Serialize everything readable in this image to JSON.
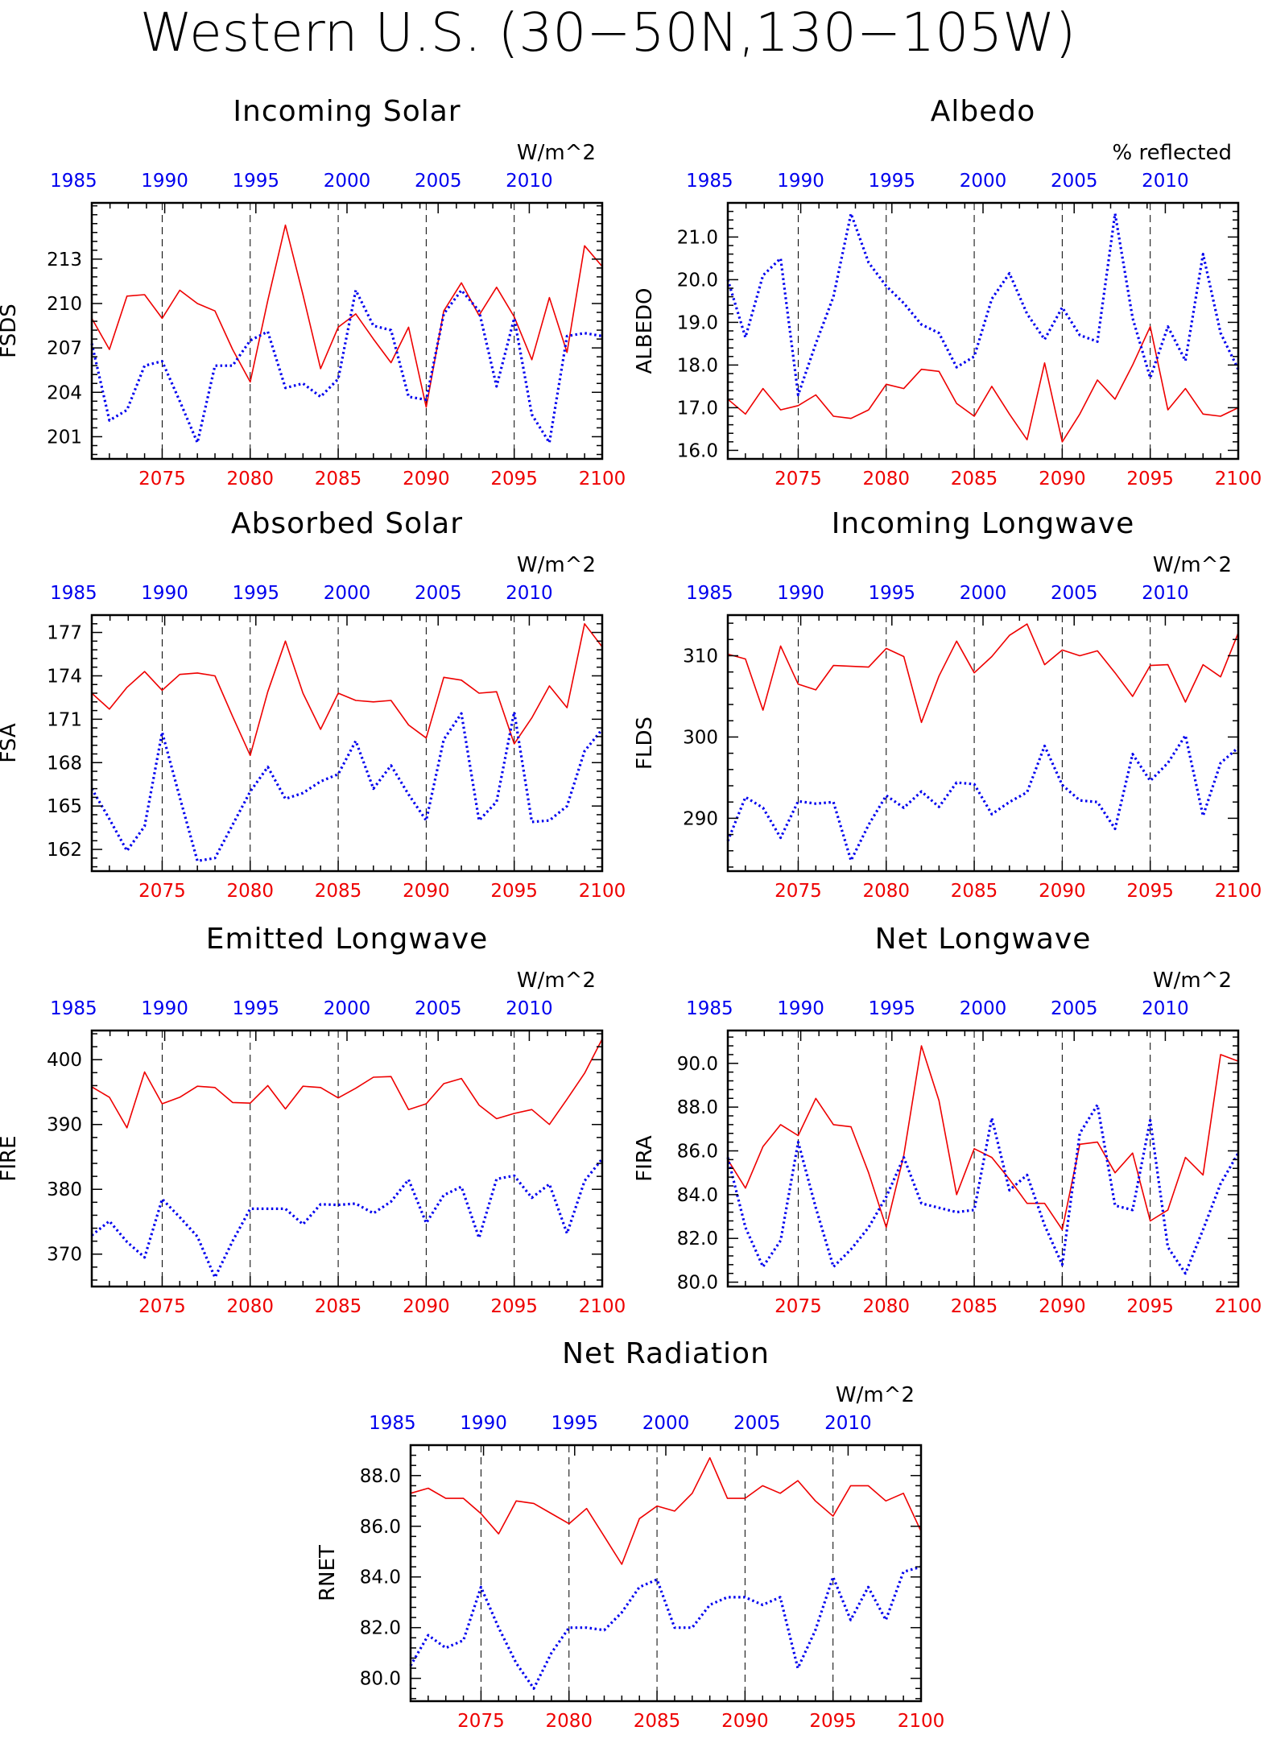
{
  "title": "Western U.S. (30−50N,130−105W)",
  "colors": {
    "red_series": "#ee0000",
    "blue_series": "#0000ee",
    "red_axis": "#ee0000",
    "blue_axis": "#0000ee",
    "frame": "#000000"
  },
  "chart_data": [
    {
      "type": "line",
      "title": "Incoming Solar",
      "units": "W/m^2",
      "ylabel": "FSDS",
      "ylim": [
        199.5,
        216.8
      ],
      "yticks": [
        201,
        204,
        207,
        210,
        213
      ],
      "ytick_labels": [
        "201",
        "204",
        "207",
        "210",
        "213"
      ],
      "x_bottom": {
        "range": [
          2071,
          2100
        ],
        "ticks": [
          2075,
          2080,
          2085,
          2090,
          2095,
          2100
        ]
      },
      "x_top": {
        "range": [
          1986,
          2014
        ],
        "ticks": [
          1985,
          1990,
          1995,
          2000,
          2005,
          2010
        ]
      },
      "vlines": [
        2075,
        2080,
        2085,
        2090,
        2095
      ],
      "series": [
        {
          "color": "red",
          "style": "solid",
          "values": [
            209.0,
            206.9,
            210.5,
            210.6,
            209.0,
            210.9,
            210.0,
            209.5,
            206.9,
            204.7,
            210.2,
            215.3,
            210.6,
            205.6,
            208.4,
            209.3,
            207.6,
            206.0,
            208.4,
            203.0,
            209.5,
            211.4,
            209.2,
            211.1,
            209.1,
            206.2,
            210.4,
            206.7,
            213.9,
            212.5
          ]
        },
        {
          "color": "blue",
          "style": "dotted",
          "values": [
            207.3,
            202.1,
            202.8,
            205.8,
            206.1,
            203.4,
            200.6,
            205.8,
            205.8,
            207.5,
            208.1,
            204.3,
            204.6,
            203.7,
            204.9,
            210.9,
            208.5,
            208.2,
            203.7,
            203.5,
            209.3,
            210.9,
            209.5,
            204.4,
            209.0,
            202.5,
            200.6,
            207.8,
            208.0,
            207.8
          ]
        }
      ]
    },
    {
      "type": "line",
      "title": "Albedo",
      "units": "% reflected",
      "ylabel": "ALBEDO",
      "ylim": [
        15.8,
        21.8
      ],
      "yticks": [
        16.0,
        17.0,
        18.0,
        19.0,
        20.0,
        21.0
      ],
      "ytick_labels": [
        "16.0",
        "17.0",
        "18.0",
        "19.0",
        "20.0",
        "21.0"
      ],
      "x_bottom": {
        "range": [
          2071,
          2100
        ],
        "ticks": [
          2075,
          2080,
          2085,
          2090,
          2095,
          2100
        ]
      },
      "x_top": {
        "range": [
          1986,
          2014
        ],
        "ticks": [
          1985,
          1990,
          1995,
          2000,
          2005,
          2010
        ]
      },
      "vlines": [
        2075,
        2080,
        2085,
        2090,
        2095
      ],
      "series": [
        {
          "color": "red",
          "style": "solid",
          "values": [
            17.2,
            16.85,
            17.45,
            16.95,
            17.05,
            17.3,
            16.8,
            16.75,
            16.95,
            17.55,
            17.45,
            17.9,
            17.85,
            17.1,
            16.8,
            17.5,
            16.85,
            16.25,
            18.05,
            16.2,
            16.85,
            17.65,
            17.2,
            18.0,
            18.9,
            16.95,
            17.45,
            16.85,
            16.8,
            17.0
          ]
        },
        {
          "color": "blue",
          "style": "dotted",
          "values": [
            20.0,
            18.65,
            20.1,
            20.5,
            17.3,
            18.5,
            19.6,
            21.55,
            20.4,
            19.85,
            19.45,
            18.95,
            18.75,
            17.95,
            18.2,
            19.55,
            20.15,
            19.2,
            18.6,
            19.35,
            18.7,
            18.55,
            21.55,
            19.1,
            17.7,
            18.9,
            18.1,
            20.6,
            18.75,
            17.9
          ]
        }
      ]
    },
    {
      "type": "line",
      "title": "Absorbed Solar",
      "units": "W/m^2",
      "ylabel": "FSA",
      "ylim": [
        160.5,
        178.2
      ],
      "yticks": [
        162,
        165,
        168,
        171,
        174,
        177
      ],
      "ytick_labels": [
        "162",
        "165",
        "168",
        "171",
        "174",
        "177"
      ],
      "x_bottom": {
        "range": [
          2071,
          2100
        ],
        "ticks": [
          2075,
          2080,
          2085,
          2090,
          2095,
          2100
        ]
      },
      "x_top": {
        "range": [
          1986,
          2014
        ],
        "ticks": [
          1985,
          1990,
          1995,
          2000,
          2005,
          2010
        ]
      },
      "vlines": [
        2075,
        2080,
        2085,
        2090,
        2095
      ],
      "series": [
        {
          "color": "red",
          "style": "solid",
          "values": [
            172.8,
            171.7,
            173.2,
            174.3,
            173.0,
            174.1,
            174.2,
            174.0,
            171.2,
            168.5,
            172.9,
            176.4,
            172.8,
            170.3,
            172.8,
            172.3,
            172.2,
            172.3,
            170.6,
            169.7,
            173.9,
            173.7,
            172.8,
            172.9,
            169.3,
            171.1,
            173.3,
            171.8,
            177.6,
            176.0
          ]
        },
        {
          "color": "blue",
          "style": "dotted",
          "values": [
            166.2,
            164.1,
            161.9,
            163.6,
            170.1,
            165.6,
            161.2,
            161.4,
            163.7,
            166.0,
            167.7,
            165.5,
            165.9,
            166.7,
            167.2,
            169.5,
            166.2,
            167.8,
            165.8,
            164.0,
            169.6,
            171.4,
            164.0,
            165.3,
            171.5,
            163.9,
            164.0,
            165.0,
            168.8,
            170.3
          ]
        }
      ]
    },
    {
      "type": "line",
      "title": "Incoming Longwave",
      "units": "W/m^2",
      "ylabel": "FLDS",
      "ylim": [
        283.5,
        315.0
      ],
      "yticks": [
        290,
        300,
        310
      ],
      "ytick_labels": [
        "290",
        "300",
        "310"
      ],
      "x_bottom": {
        "range": [
          2071,
          2100
        ],
        "ticks": [
          2075,
          2080,
          2085,
          2090,
          2095,
          2100
        ]
      },
      "x_top": {
        "range": [
          1986,
          2014
        ],
        "ticks": [
          1985,
          1990,
          1995,
          2000,
          2005,
          2010
        ]
      },
      "vlines": [
        2075,
        2080,
        2085,
        2090,
        2095
      ],
      "series": [
        {
          "color": "red",
          "style": "solid",
          "values": [
            310.2,
            309.6,
            303.3,
            311.2,
            306.5,
            305.8,
            308.8,
            308.7,
            308.6,
            310.9,
            309.9,
            301.8,
            307.5,
            311.8,
            307.9,
            309.9,
            312.5,
            313.9,
            308.9,
            310.7,
            310.0,
            310.6,
            307.9,
            305.0,
            308.8,
            308.9,
            304.3,
            308.9,
            307.4,
            312.8
          ]
        },
        {
          "color": "blue",
          "style": "dotted",
          "values": [
            287.2,
            292.6,
            291.3,
            287.6,
            292.1,
            291.8,
            292.0,
            284.8,
            289.2,
            292.8,
            291.3,
            293.3,
            291.4,
            294.4,
            294.2,
            290.5,
            292.0,
            293.2,
            298.9,
            294.1,
            292.2,
            292.0,
            288.7,
            297.9,
            294.6,
            296.8,
            300.2,
            290.3,
            296.8,
            298.7
          ]
        }
      ]
    },
    {
      "type": "line",
      "title": "Emitted Longwave",
      "units": "W/m^2",
      "ylabel": "FIRE",
      "ylim": [
        365.0,
        404.5
      ],
      "yticks": [
        370,
        380,
        390,
        400
      ],
      "ytick_labels": [
        "370",
        "380",
        "390",
        "400"
      ],
      "x_bottom": {
        "range": [
          2071,
          2100
        ],
        "ticks": [
          2075,
          2080,
          2085,
          2090,
          2095,
          2100
        ]
      },
      "x_top": {
        "range": [
          1986,
          2014
        ],
        "ticks": [
          1985,
          1990,
          1995,
          2000,
          2005,
          2010
        ]
      },
      "vlines": [
        2075,
        2080,
        2085,
        2090,
        2095
      ],
      "series": [
        {
          "color": "red",
          "style": "solid",
          "values": [
            395.8,
            394.2,
            389.5,
            398.1,
            393.2,
            394.2,
            395.9,
            395.7,
            393.4,
            393.3,
            396.0,
            392.4,
            395.9,
            395.7,
            394.1,
            395.6,
            397.3,
            397.4,
            392.3,
            393.2,
            396.3,
            397.1,
            393.0,
            390.9,
            391.7,
            392.3,
            390.0,
            393.9,
            397.9,
            403.2
          ]
        },
        {
          "color": "blue",
          "style": "dotted",
          "values": [
            372.9,
            375.1,
            371.9,
            369.5,
            378.5,
            375.7,
            372.7,
            366.4,
            372.0,
            377.0,
            377.0,
            377.0,
            374.6,
            377.7,
            377.6,
            377.8,
            376.3,
            378.1,
            381.5,
            374.8,
            379.1,
            380.4,
            372.5,
            381.6,
            382.1,
            378.7,
            380.8,
            373.2,
            381.3,
            384.7
          ]
        }
      ]
    },
    {
      "type": "line",
      "title": "Net Longwave",
      "units": "W/m^2",
      "ylabel": "FIRA",
      "ylim": [
        79.8,
        91.5
      ],
      "yticks": [
        80.0,
        82.0,
        84.0,
        86.0,
        88.0,
        90.0
      ],
      "ytick_labels": [
        "80.0",
        "82.0",
        "84.0",
        "86.0",
        "88.0",
        "90.0"
      ],
      "x_bottom": {
        "range": [
          2071,
          2100
        ],
        "ticks": [
          2075,
          2080,
          2085,
          2090,
          2095,
          2100
        ]
      },
      "x_top": {
        "range": [
          1986,
          2014
        ],
        "ticks": [
          1985,
          1990,
          1995,
          2000,
          2005,
          2010
        ]
      },
      "vlines": [
        2075,
        2080,
        2085,
        2090,
        2095
      ],
      "series": [
        {
          "color": "red",
          "style": "solid",
          "values": [
            85.6,
            84.3,
            86.2,
            87.2,
            86.7,
            88.4,
            87.2,
            87.1,
            85.0,
            82.5,
            85.8,
            90.8,
            88.3,
            84.0,
            86.1,
            85.7,
            84.7,
            83.6,
            83.6,
            82.4,
            86.3,
            86.4,
            85.0,
            85.9,
            82.8,
            83.3,
            85.7,
            84.9,
            90.4,
            90.1
          ]
        },
        {
          "color": "blue",
          "style": "dotted",
          "values": [
            85.7,
            82.5,
            80.7,
            81.9,
            86.4,
            83.4,
            80.7,
            81.5,
            82.5,
            83.9,
            85.7,
            83.6,
            83.4,
            83.2,
            83.3,
            87.5,
            84.2,
            84.9,
            82.6,
            80.8,
            86.8,
            88.1,
            83.5,
            83.3,
            87.4,
            81.6,
            80.4,
            82.4,
            84.5,
            85.9
          ]
        }
      ]
    },
    {
      "type": "line",
      "title": "Net Radiation",
      "units": "W/m^2",
      "ylabel": "RNET",
      "ylim": [
        79.1,
        89.2
      ],
      "yticks": [
        80.0,
        82.0,
        84.0,
        86.0,
        88.0
      ],
      "ytick_labels": [
        "80.0",
        "82.0",
        "84.0",
        "86.0",
        "88.0"
      ],
      "x_bottom": {
        "range": [
          2071,
          2100
        ],
        "ticks": [
          2075,
          2080,
          2085,
          2090,
          2095,
          2100
        ]
      },
      "x_top": {
        "range": [
          1986,
          2014
        ],
        "ticks": [
          1985,
          1990,
          1995,
          2000,
          2005,
          2010
        ]
      },
      "vlines": [
        2075,
        2080,
        2085,
        2090,
        2095
      ],
      "series": [
        {
          "color": "red",
          "style": "solid",
          "values": [
            87.3,
            87.5,
            87.1,
            87.1,
            86.5,
            85.7,
            87.0,
            86.9,
            86.5,
            86.1,
            86.7,
            85.6,
            84.5,
            86.3,
            86.8,
            86.6,
            87.3,
            88.7,
            87.1,
            87.1,
            87.6,
            87.3,
            87.8,
            87.0,
            86.4,
            87.6,
            87.6,
            87.0,
            87.3,
            85.8
          ]
        },
        {
          "color": "blue",
          "style": "dotted",
          "values": [
            80.5,
            81.7,
            81.2,
            81.5,
            83.6,
            82.0,
            80.6,
            79.6,
            81.0,
            82.0,
            82.0,
            81.9,
            82.6,
            83.6,
            83.9,
            82.0,
            82.0,
            82.9,
            83.2,
            83.2,
            82.9,
            83.2,
            80.4,
            81.9,
            84.0,
            82.3,
            83.6,
            82.3,
            84.2,
            84.4
          ]
        }
      ]
    }
  ]
}
